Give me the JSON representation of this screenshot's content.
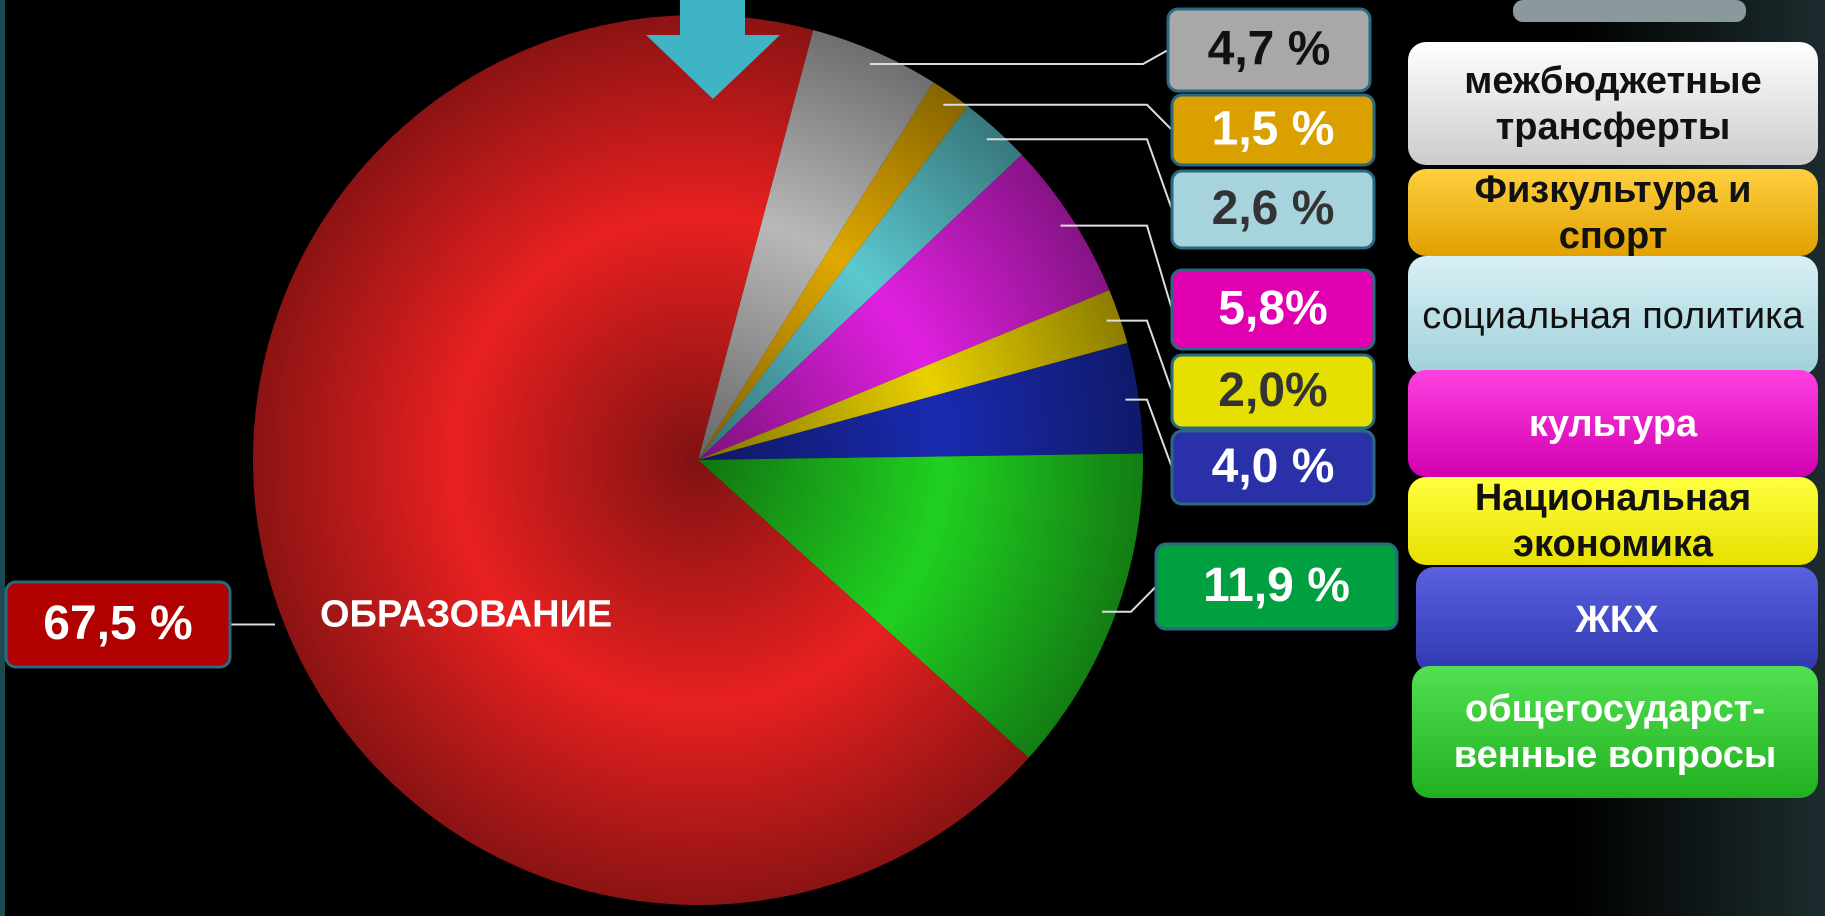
{
  "chart_data": {
    "type": "pie",
    "categories": [
      "межбюджетные трансферты",
      "Физкультура и спорт",
      "социальная политика",
      "культура",
      "Национальная экономика",
      "ЖКХ",
      "общегосударст-венные вопросы",
      "ОБРАЗОВАНИЕ"
    ],
    "values": [
      4.7,
      1.5,
      2.6,
      5.8,
      2.0,
      4.0,
      11.9,
      67.5
    ],
    "value_labels": [
      "4,7 %",
      "1,5 %",
      "2,6 %",
      "5,8%",
      "2,0%",
      "4,0 %",
      "11,9 %",
      "67,5 %"
    ],
    "colors": [
      "#b8b8b8",
      "#e0a800",
      "#5cc8d0",
      "#e020e0",
      "#e8d000",
      "#1a2ab0",
      "#20d020",
      "#e82020"
    ]
  }
}
